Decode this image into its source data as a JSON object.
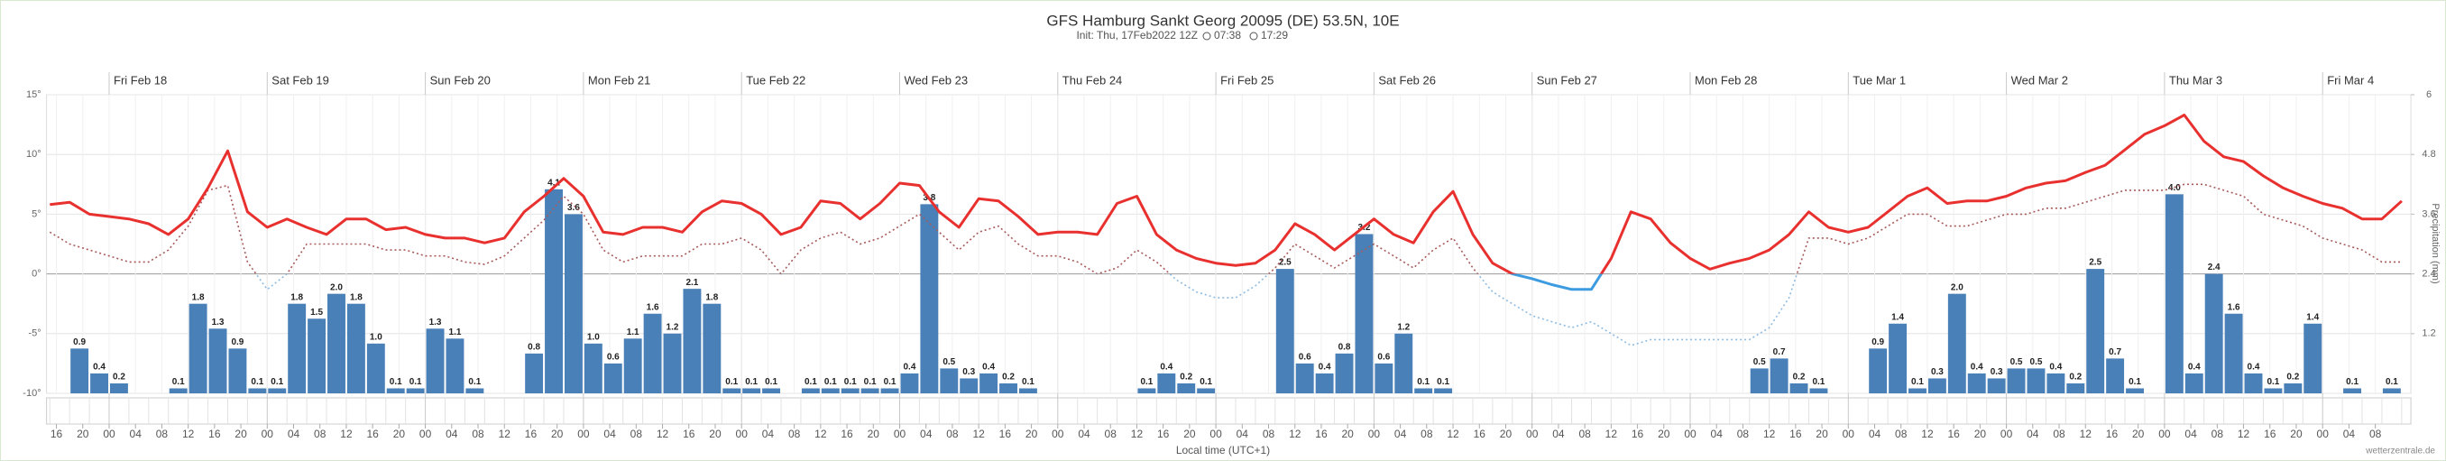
{
  "chart_data": {
    "type": "meteogram",
    "title": "GFS Hamburg Sankt Georg 20095 (DE) 53.5N, 10E",
    "subtitle": "Init: Thu, 17Feb2022 12Z",
    "sunrise": "07:38",
    "sunset": "17:29",
    "xlabel": "Local time (UTC+1)",
    "y2label": "Precipitation (mm)",
    "credit": "wetterzentrale.de",
    "ylim": [
      -10,
      15
    ],
    "yticks": [
      {
        "value": -10,
        "label": "-10°"
      },
      {
        "value": -5,
        "label": "-5°"
      },
      {
        "value": 0,
        "label": "0°"
      },
      {
        "value": 5,
        "label": "5°"
      },
      {
        "value": 10,
        "label": "10°"
      },
      {
        "value": 15,
        "label": "15°"
      }
    ],
    "y2lim": [
      0,
      6
    ],
    "y2ticks": [
      1.2,
      2.4,
      3.6,
      4.8,
      6
    ],
    "grid": true,
    "temp_color": "#e8312f",
    "temp_cold_color": "#3d9be0",
    "dew_color": "#a85a5a",
    "dew_cold_color": "#8dbbe2",
    "bar_color": "#4a80b8",
    "hour_ticks": [
      {
        "value": 0,
        "label": "00"
      },
      {
        "value": 4,
        "label": "04"
      },
      {
        "value": 8,
        "label": "08"
      },
      {
        "value": 12,
        "label": "12"
      },
      {
        "value": 16,
        "label": "16"
      },
      {
        "value": 20,
        "label": "20"
      }
    ],
    "days": [
      {
        "label": null,
        "temp": [
          null,
          null,
          null,
          null,
          null,
          5.8,
          6.0,
          5.0
        ],
        "dew": [
          null,
          null,
          null,
          null,
          null,
          3.5,
          2.5,
          2.0
        ],
        "precip": [
          null,
          null,
          null,
          null,
          null,
          null,
          0.9,
          0.4
        ],
        "precip_labels": [
          null,
          null,
          null,
          null,
          null,
          null,
          "0.9",
          "0.4"
        ]
      },
      {
        "label": "Fri Feb 18",
        "temp": [
          4.8,
          4.6,
          4.2,
          3.3,
          4.6,
          7.2,
          10.3,
          5.2
        ],
        "dew": [
          1.5,
          1.0,
          1.0,
          2.0,
          4.0,
          7.0,
          7.4,
          1.0
        ],
        "precip": [
          0.2,
          null,
          null,
          0.1,
          1.8,
          1.3,
          0.9,
          0.1
        ],
        "precip_labels": [
          "0.2",
          null,
          null,
          "0.1",
          "1.8",
          "1.3",
          "0.9",
          "0.1"
        ]
      },
      {
        "label": "Sat Feb 19",
        "temp": [
          3.9,
          4.6,
          3.9,
          3.3,
          4.6,
          4.6,
          3.7,
          3.9
        ],
        "dew": [
          -1.3,
          0.0,
          2.5,
          2.5,
          2.5,
          2.5,
          2.0,
          2.0
        ],
        "precip": [
          0.1,
          1.8,
          1.5,
          2.0,
          1.8,
          1.0,
          0.1,
          0.1
        ],
        "precip_labels": [
          "0.1",
          "1.8",
          "1.5",
          "2.0",
          "1.8",
          "1.0",
          "0.1",
          "0.1"
        ]
      },
      {
        "label": "Sun Feb 20",
        "temp": [
          3.3,
          3.0,
          3.0,
          2.6,
          3.0,
          5.2,
          6.5,
          8.0
        ],
        "dew": [
          1.5,
          1.5,
          1.0,
          0.8,
          1.5,
          3.0,
          4.5,
          6.5
        ],
        "precip": [
          1.3,
          1.1,
          0.1,
          null,
          null,
          0.8,
          4.1,
          3.6
        ],
        "precip_labels": [
          "1.3",
          "1.1",
          "0.1",
          null,
          null,
          "0.8",
          "4.1",
          "3.6"
        ]
      },
      {
        "label": "Mon Feb 21",
        "temp": [
          6.5,
          3.5,
          3.3,
          3.9,
          3.9,
          3.5,
          5.2,
          6.1
        ],
        "dew": [
          5.0,
          2.0,
          1.0,
          1.5,
          1.5,
          1.5,
          2.5,
          2.5
        ],
        "precip": [
          1.0,
          0.6,
          1.1,
          1.6,
          1.2,
          2.1,
          1.8,
          0.1
        ],
        "precip_labels": [
          "1.0",
          "0.6",
          "1.1",
          "1.6",
          "1.2",
          "2.1",
          "1.8",
          "0.1"
        ]
      },
      {
        "label": "Tue Feb 22",
        "temp": [
          5.9,
          5.0,
          3.3,
          3.9,
          6.1,
          5.9,
          4.6,
          5.9
        ],
        "dew": [
          3.0,
          2.0,
          0.0,
          2.0,
          3.0,
          3.5,
          2.5,
          3.0
        ],
        "precip": [
          0.1,
          0.1,
          null,
          0.1,
          0.1,
          0.1,
          0.1,
          0.1
        ],
        "precip_labels": [
          "0.1",
          "0.1",
          null,
          "0.1",
          "0.1",
          "0.1",
          "0.1",
          "0.1"
        ]
      },
      {
        "label": "Wed Feb 23",
        "temp": [
          7.6,
          7.4,
          5.2,
          3.9,
          6.3,
          6.1,
          4.8,
          3.3
        ],
        "dew": [
          4.0,
          5.0,
          3.5,
          2.0,
          3.5,
          4.0,
          2.5,
          1.5
        ],
        "precip": [
          0.4,
          3.8,
          0.5,
          0.3,
          0.4,
          0.2,
          0.1,
          null
        ],
        "precip_labels": [
          "0.4",
          "3.8",
          "0.5",
          "0.3",
          "0.4",
          "0.2",
          "0.1",
          null
        ]
      },
      {
        "label": "Thu Feb 24",
        "temp": [
          3.5,
          3.5,
          3.3,
          5.9,
          6.5,
          3.3,
          2.0,
          1.3
        ],
        "dew": [
          1.5,
          1.0,
          0.0,
          0.5,
          2.0,
          1.0,
          -0.5,
          -1.5
        ],
        "precip": [
          null,
          null,
          null,
          null,
          0.1,
          0.4,
          0.2,
          0.1
        ],
        "precip_labels": [
          null,
          null,
          null,
          null,
          "0.1",
          "0.4",
          "0.2",
          "0.1"
        ]
      },
      {
        "label": "Fri Feb 25",
        "temp": [
          0.9,
          0.7,
          0.9,
          2.0,
          4.2,
          3.3,
          2.0,
          3.3
        ],
        "dew": [
          -2.0,
          -2.0,
          -1.0,
          0.5,
          2.5,
          1.5,
          0.5,
          1.5
        ],
        "precip": [
          null,
          null,
          null,
          2.5,
          0.6,
          0.4,
          0.8,
          3.2
        ],
        "precip_labels": [
          null,
          null,
          null,
          "2.5",
          "0.6",
          "0.4",
          "0.8",
          "3.2"
        ]
      },
      {
        "label": "Sat Feb 26",
        "temp": [
          4.6,
          3.3,
          2.6,
          5.2,
          6.9,
          3.3,
          0.9,
          0.0
        ],
        "dew": [
          2.5,
          1.5,
          0.5,
          2.0,
          3.0,
          0.5,
          -1.5,
          -2.5
        ],
        "precip": [
          0.6,
          1.2,
          0.1,
          0.1,
          null,
          null,
          null,
          null
        ],
        "precip_labels": [
          "0.6",
          "1.2",
          "0.1",
          "0.1",
          null,
          null,
          null,
          null
        ]
      },
      {
        "label": "Sun Feb 27",
        "temp": [
          -0.4,
          -0.9,
          -1.3,
          -1.3,
          1.3,
          5.2,
          4.6,
          2.6
        ],
        "dew": [
          -3.5,
          -4.0,
          -4.5,
          -4.0,
          -5.0,
          -6.0,
          -5.5,
          -5.5
        ],
        "precip": [
          null,
          null,
          null,
          null,
          null,
          null,
          null,
          null
        ],
        "precip_labels": [
          null,
          null,
          null,
          null,
          null,
          null,
          null,
          null
        ]
      },
      {
        "label": "Mon Feb 28",
        "temp": [
          1.3,
          0.4,
          0.9,
          1.3,
          2.0,
          3.3,
          5.2,
          3.9
        ],
        "dew": [
          -5.5,
          -5.5,
          -5.5,
          -5.5,
          -4.5,
          -2.0,
          3.0,
          3.0
        ],
        "precip": [
          null,
          null,
          null,
          0.5,
          0.7,
          0.2,
          0.1,
          null
        ],
        "precip_labels": [
          null,
          null,
          null,
          "0.5",
          "0.7",
          "0.2",
          "0.1",
          null
        ]
      },
      {
        "label": "Tue Mar 1",
        "temp": [
          3.5,
          3.9,
          5.2,
          6.5,
          7.2,
          5.9,
          6.1,
          6.1
        ],
        "dew": [
          2.5,
          3.0,
          4.0,
          5.0,
          5.0,
          4.0,
          4.0,
          4.5
        ],
        "precip": [
          null,
          0.9,
          1.4,
          0.1,
          0.3,
          2.0,
          0.4,
          0.3
        ],
        "precip_labels": [
          null,
          "0.9",
          "1.4",
          "0.1",
          "0.3",
          "2.0",
          "0.4",
          "0.3"
        ]
      },
      {
        "label": "Wed Mar 2",
        "temp": [
          6.5,
          7.2,
          7.6,
          7.8,
          8.5,
          9.1,
          10.4,
          11.7
        ],
        "dew": [
          5.0,
          5.0,
          5.5,
          5.5,
          6.0,
          6.5,
          7.0,
          7.0
        ],
        "precip": [
          0.5,
          0.5,
          0.4,
          0.2,
          2.5,
          0.7,
          0.1,
          null
        ],
        "precip_labels": [
          "0.5",
          "0.5",
          "0.4",
          "0.2",
          "2.5",
          "0.7",
          "0.1",
          null
        ]
      },
      {
        "label": "Thu Mar 3",
        "temp": [
          12.4,
          13.3,
          11.1,
          9.8,
          9.4,
          8.2,
          7.2,
          6.5
        ],
        "dew": [
          7.0,
          7.5,
          7.5,
          7.0,
          6.5,
          5.0,
          4.5,
          4.0
        ],
        "precip": [
          4.0,
          0.4,
          2.4,
          1.6,
          0.4,
          0.1,
          0.2,
          1.4
        ],
        "precip_labels": [
          "4.0",
          "0.4",
          "2.4",
          "1.6",
          "0.4",
          "0.1",
          "0.2",
          "1.4"
        ]
      },
      {
        "label": "Fri Mar 4",
        "temp": [
          5.9,
          5.5,
          4.6,
          4.6,
          6.1,
          null,
          null,
          null
        ],
        "dew": [
          3.0,
          2.5,
          2.0,
          1.0,
          1.0,
          null,
          null,
          null
        ],
        "precip": [
          null,
          0.1,
          null,
          0.1,
          null,
          null,
          null,
          null
        ],
        "precip_labels": [
          null,
          "0.1",
          null,
          "0.1",
          null,
          null,
          null,
          null
        ]
      }
    ]
  }
}
